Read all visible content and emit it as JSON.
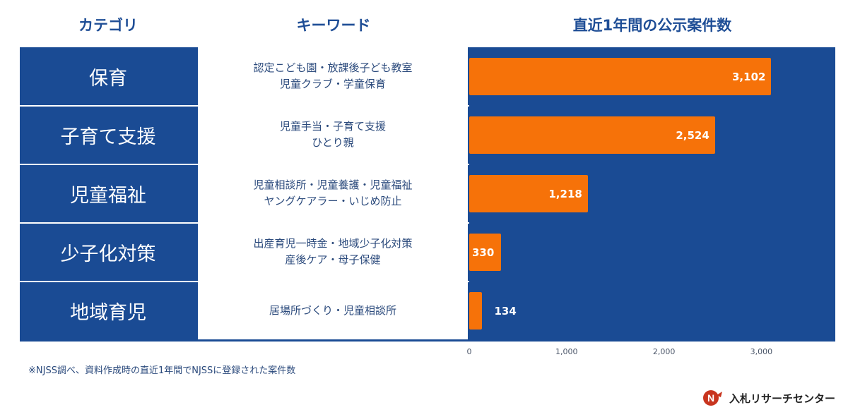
{
  "headers": {
    "category": "カテゴリ",
    "keyword": "キーワード",
    "count": "直近1年間の公示案件数"
  },
  "rows": [
    {
      "category": "保育",
      "keywords": [
        "認定こども園・放課後子ども教室",
        "児童クラブ・学童保育"
      ],
      "value_label": "3,102"
    },
    {
      "category": "子育て支援",
      "keywords": [
        "児童手当・子育て支援",
        "ひとり親"
      ],
      "value_label": "2,524"
    },
    {
      "category": "児童福祉",
      "keywords": [
        "児童相談所・児童養護・児童福祉",
        "ヤングケアラー・いじめ防止"
      ],
      "value_label": "1,218"
    },
    {
      "category": "少子化対策",
      "keywords": [
        "出産育児一時金・地域少子化対策",
        "産後ケア・母子保健"
      ],
      "value_label": "330"
    },
    {
      "category": "地域育児",
      "keywords": [
        "居場所づくり・児童相談所"
      ],
      "value_label": "134"
    }
  ],
  "chart_data": {
    "type": "bar",
    "orientation": "horizontal",
    "title": "直近1年間の公示案件数",
    "categories": [
      "保育",
      "子育て支援",
      "児童福祉",
      "少子化対策",
      "地域育児"
    ],
    "values": [
      3102,
      2524,
      1218,
      330,
      134
    ],
    "xlim": [
      0,
      3800
    ],
    "xticks": [
      0,
      1000,
      2000,
      3000
    ],
    "xtick_labels": [
      "0",
      "1,000",
      "2,000",
      "3,000"
    ],
    "xlabel": "",
    "ylabel": ""
  },
  "footnote": "※NJSS調べ、資料作成時の直近1年間でNJSSに登録された案件数",
  "brand": {
    "logo_mark": "N",
    "name": "入札リサーチセンター"
  },
  "colors": {
    "navy": "#1a4b94",
    "bar": "#f67209",
    "header_text": "#1f4e96",
    "keyword_text": "#2b4a7c"
  }
}
